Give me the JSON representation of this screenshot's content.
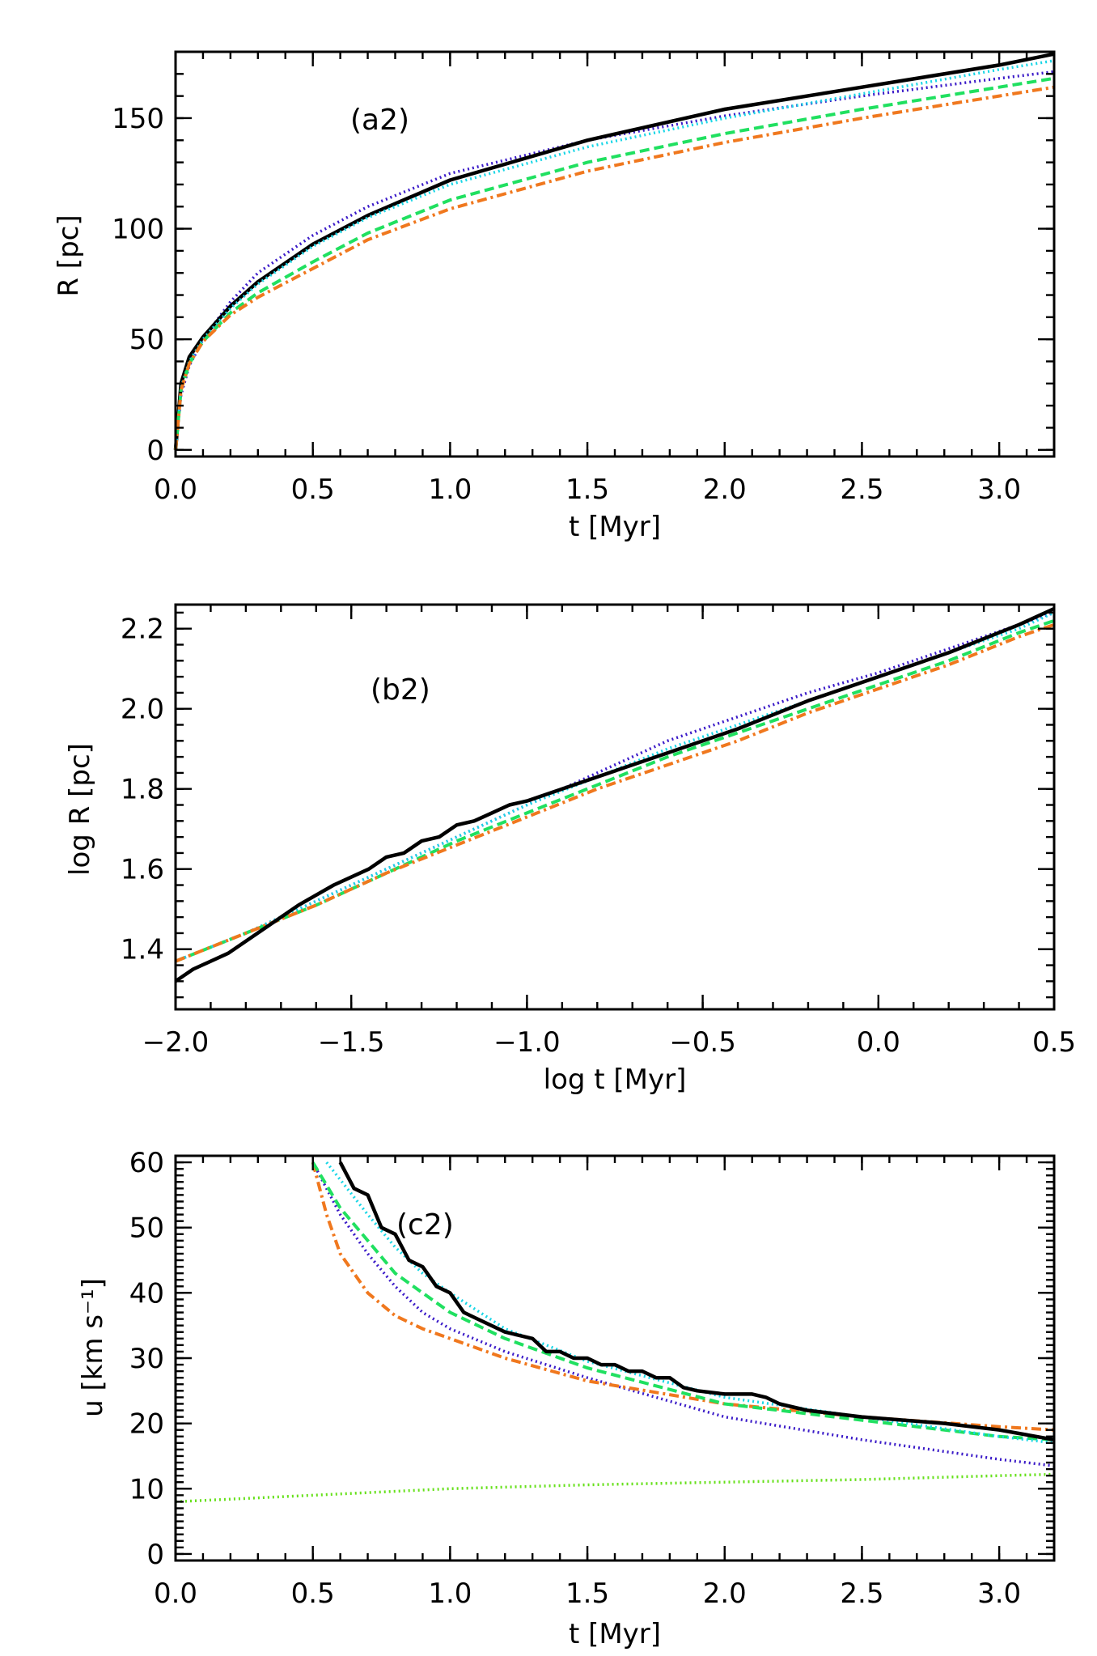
{
  "colors": {
    "black": "#000000",
    "cyan": "#19d6e6",
    "blue": "#3a1ac8",
    "green": "#20e060",
    "orange": "#f0781e",
    "lime": "#66e01a"
  },
  "chart_data": [
    {
      "type": "line",
      "panel_label": "(a2)",
      "xlabel": "t [Myr]",
      "ylabel": "R [pc]",
      "xlim": [
        0.0,
        3.2
      ],
      "ylim": [
        -3,
        180
      ],
      "xticks": [
        0.0,
        0.5,
        1.0,
        1.5,
        2.0,
        2.5,
        3.0
      ],
      "xtick_labels": [
        "0.0",
        "0.5",
        "1.0",
        "1.5",
        "2.0",
        "2.5",
        "3.0"
      ],
      "yticks": [
        0,
        50,
        100,
        150
      ],
      "ytick_labels": [
        "0",
        "50",
        "100",
        "150"
      ],
      "series": [
        {
          "name": "blue dotted",
          "color": "blue",
          "style": "dotted",
          "x": [
            0.0,
            0.02,
            0.05,
            0.1,
            0.2,
            0.3,
            0.5,
            0.7,
            1.0,
            1.5,
            2.0,
            2.5,
            3.0,
            3.2
          ],
          "y": [
            0,
            25,
            38,
            50,
            67,
            80,
            97,
            110,
            125,
            140,
            151,
            160,
            168,
            171
          ]
        },
        {
          "name": "black solid",
          "color": "black",
          "style": "solid",
          "x": [
            0.0,
            0.02,
            0.05,
            0.1,
            0.2,
            0.3,
            0.5,
            0.7,
            1.0,
            1.5,
            2.0,
            2.5,
            3.0,
            3.2
          ],
          "y": [
            0,
            30,
            42,
            51,
            65,
            76,
            93,
            106,
            122,
            140,
            154,
            164,
            174,
            179
          ]
        },
        {
          "name": "cyan dotted",
          "color": "cyan",
          "style": "dotted",
          "x": [
            0.0,
            0.02,
            0.05,
            0.1,
            0.2,
            0.3,
            0.5,
            0.7,
            1.0,
            1.5,
            2.0,
            2.5,
            3.0,
            3.2
          ],
          "y": [
            0,
            28,
            40,
            50,
            64,
            75,
            92,
            105,
            120,
            137,
            150,
            161,
            172,
            176
          ]
        },
        {
          "name": "green dashed",
          "color": "green",
          "style": "dashed",
          "x": [
            0.0,
            0.02,
            0.05,
            0.1,
            0.2,
            0.3,
            0.5,
            0.7,
            1.0,
            1.5,
            2.0,
            2.5,
            3.0,
            3.2
          ],
          "y": [
            0,
            27,
            39,
            49,
            62,
            71,
            85,
            98,
            113,
            130,
            143,
            154,
            164,
            168
          ]
        },
        {
          "name": "orange dash-dot",
          "color": "orange",
          "style": "dashdot",
          "x": [
            0.0,
            0.02,
            0.05,
            0.1,
            0.2,
            0.3,
            0.5,
            0.7,
            1.0,
            1.5,
            2.0,
            2.5,
            3.0,
            3.2
          ],
          "y": [
            0,
            27,
            39,
            49,
            61,
            69,
            82,
            95,
            109,
            126,
            139,
            150,
            160,
            164
          ]
        }
      ]
    },
    {
      "type": "line",
      "panel_label": "(b2)",
      "xlabel": "log t [Myr]",
      "ylabel": "log R [pc]",
      "xlim": [
        -2.0,
        0.5
      ],
      "ylim": [
        1.25,
        2.26
      ],
      "xticks": [
        -2.0,
        -1.5,
        -1.0,
        -0.5,
        0.0,
        0.5
      ],
      "xtick_labels": [
        "−2.0",
        "−1.5",
        "−1.0",
        "−0.5",
        "0.0",
        "0.5"
      ],
      "yticks": [
        1.4,
        1.6,
        1.8,
        2.0,
        2.2
      ],
      "ytick_labels": [
        "1.4",
        "1.6",
        "1.8",
        "2.0",
        "2.2"
      ],
      "series": [
        {
          "name": "blue dotted",
          "color": "blue",
          "style": "dotted",
          "x": [
            -2.0,
            -1.8,
            -1.6,
            -1.4,
            -1.2,
            -1.0,
            -0.8,
            -0.6,
            -0.4,
            -0.2,
            0.0,
            0.2,
            0.4,
            0.5
          ],
          "y": [
            1.37,
            1.44,
            1.52,
            1.6,
            1.68,
            1.76,
            1.84,
            1.92,
            1.98,
            2.04,
            2.09,
            2.15,
            2.21,
            2.24
          ]
        },
        {
          "name": "cyan dotted",
          "color": "cyan",
          "style": "dotted",
          "x": [
            -2.0,
            -1.8,
            -1.6,
            -1.4,
            -1.2,
            -1.0,
            -0.8,
            -0.6,
            -0.4,
            -0.2,
            0.0,
            0.2,
            0.4,
            0.5
          ],
          "y": [
            1.37,
            1.44,
            1.52,
            1.6,
            1.68,
            1.76,
            1.83,
            1.9,
            1.96,
            2.02,
            2.08,
            2.14,
            2.2,
            2.24
          ]
        },
        {
          "name": "green dashed",
          "color": "green",
          "style": "dashed",
          "x": [
            -2.0,
            -1.8,
            -1.6,
            -1.4,
            -1.2,
            -1.0,
            -0.8,
            -0.6,
            -0.4,
            -0.2,
            0.0,
            0.2,
            0.4,
            0.5
          ],
          "y": [
            1.37,
            1.44,
            1.51,
            1.59,
            1.67,
            1.74,
            1.81,
            1.88,
            1.94,
            2.0,
            2.06,
            2.12,
            2.19,
            2.22
          ]
        },
        {
          "name": "orange dash-dot",
          "color": "orange",
          "style": "dashdot",
          "x": [
            -2.0,
            -1.8,
            -1.6,
            -1.4,
            -1.2,
            -1.0,
            -0.8,
            -0.6,
            -0.4,
            -0.2,
            0.0,
            0.2,
            0.4,
            0.5
          ],
          "y": [
            1.37,
            1.44,
            1.51,
            1.59,
            1.66,
            1.73,
            1.8,
            1.86,
            1.92,
            1.99,
            2.05,
            2.11,
            2.18,
            2.21
          ]
        },
        {
          "name": "black solid",
          "color": "black",
          "style": "solid",
          "x": [
            -2.0,
            -1.95,
            -1.85,
            -1.75,
            -1.65,
            -1.55,
            -1.45,
            -1.4,
            -1.35,
            -1.3,
            -1.25,
            -1.2,
            -1.15,
            -1.1,
            -1.05,
            -1.0,
            -0.8,
            -0.6,
            -0.4,
            -0.2,
            0.0,
            0.2,
            0.4,
            0.5
          ],
          "y": [
            1.32,
            1.35,
            1.39,
            1.45,
            1.51,
            1.56,
            1.6,
            1.63,
            1.64,
            1.67,
            1.68,
            1.71,
            1.72,
            1.74,
            1.76,
            1.77,
            1.83,
            1.89,
            1.95,
            2.02,
            2.08,
            2.14,
            2.21,
            2.25
          ]
        }
      ]
    },
    {
      "type": "line",
      "panel_label": "(c2)",
      "xlabel": "t [Myr]",
      "ylabel": "u [km s⁻¹]",
      "xlim": [
        0.0,
        3.2
      ],
      "ylim": [
        -1,
        61
      ],
      "xticks": [
        0.0,
        0.5,
        1.0,
        1.5,
        2.0,
        2.5,
        3.0
      ],
      "xtick_labels": [
        "0.0",
        "0.5",
        "1.0",
        "1.5",
        "2.0",
        "2.5",
        "3.0"
      ],
      "yticks": [
        0,
        10,
        20,
        30,
        40,
        50,
        60
      ],
      "ytick_labels": [
        "0",
        "10",
        "20",
        "30",
        "40",
        "50",
        "60"
      ],
      "series": [
        {
          "name": "lime dotted",
          "color": "lime",
          "style": "dotted",
          "x": [
            0.0,
            0.5,
            1.0,
            1.5,
            2.0,
            2.5,
            3.0,
            3.2
          ],
          "y": [
            8,
            9,
            10,
            10.6,
            11,
            11.4,
            12,
            12.2
          ]
        },
        {
          "name": "blue dotted",
          "color": "blue",
          "style": "dotted",
          "x": [
            0.5,
            0.6,
            0.7,
            0.8,
            0.9,
            1.0,
            1.2,
            1.5,
            2.0,
            2.5,
            3.0,
            3.2
          ],
          "y": [
            60,
            52,
            46,
            41,
            37,
            34.5,
            31,
            27,
            21,
            17.5,
            14.5,
            13.5
          ]
        },
        {
          "name": "orange dash-dot",
          "color": "orange",
          "style": "dashdot",
          "x": [
            0.5,
            0.55,
            0.6,
            0.7,
            0.8,
            0.9,
            1.0,
            1.2,
            1.5,
            2.0,
            2.5,
            3.0,
            3.2
          ],
          "y": [
            60,
            52,
            46,
            40,
            36.5,
            34.5,
            33,
            30,
            26.5,
            23,
            21,
            19.5,
            19
          ]
        },
        {
          "name": "green dashed",
          "color": "green",
          "style": "dashed",
          "x": [
            0.5,
            0.6,
            0.7,
            0.8,
            0.9,
            1.0,
            1.2,
            1.5,
            2.0,
            2.5,
            3.0,
            3.2
          ],
          "y": [
            60,
            53,
            48,
            43,
            40,
            37,
            33,
            28.5,
            23,
            20.5,
            18,
            17.5
          ]
        },
        {
          "name": "cyan dotted",
          "color": "cyan",
          "style": "dotted",
          "x": [
            0.55,
            0.7,
            0.8,
            0.9,
            1.0,
            1.2,
            1.5,
            2.0,
            2.5,
            3.0,
            3.2
          ],
          "y": [
            60,
            52,
            47,
            43,
            40,
            34.5,
            29.5,
            24,
            21,
            18,
            17
          ]
        },
        {
          "name": "black solid",
          "color": "black",
          "style": "solid",
          "x": [
            0.6,
            0.65,
            0.7,
            0.75,
            0.8,
            0.85,
            0.9,
            0.95,
            1.0,
            1.05,
            1.1,
            1.2,
            1.3,
            1.35,
            1.4,
            1.45,
            1.5,
            1.55,
            1.6,
            1.65,
            1.7,
            1.75,
            1.8,
            1.85,
            1.9,
            2.0,
            2.1,
            2.15,
            2.2,
            2.3,
            2.5,
            2.8,
            3.0,
            3.2
          ],
          "y": [
            60,
            56,
            55,
            50,
            49,
            45,
            44,
            41,
            40,
            37,
            36,
            34,
            33,
            31,
            31,
            30,
            30,
            29,
            29,
            28,
            28,
            27,
            27,
            25.5,
            25,
            24.5,
            24.5,
            24,
            23,
            22,
            21,
            20,
            19,
            17.5
          ]
        }
      ]
    }
  ]
}
